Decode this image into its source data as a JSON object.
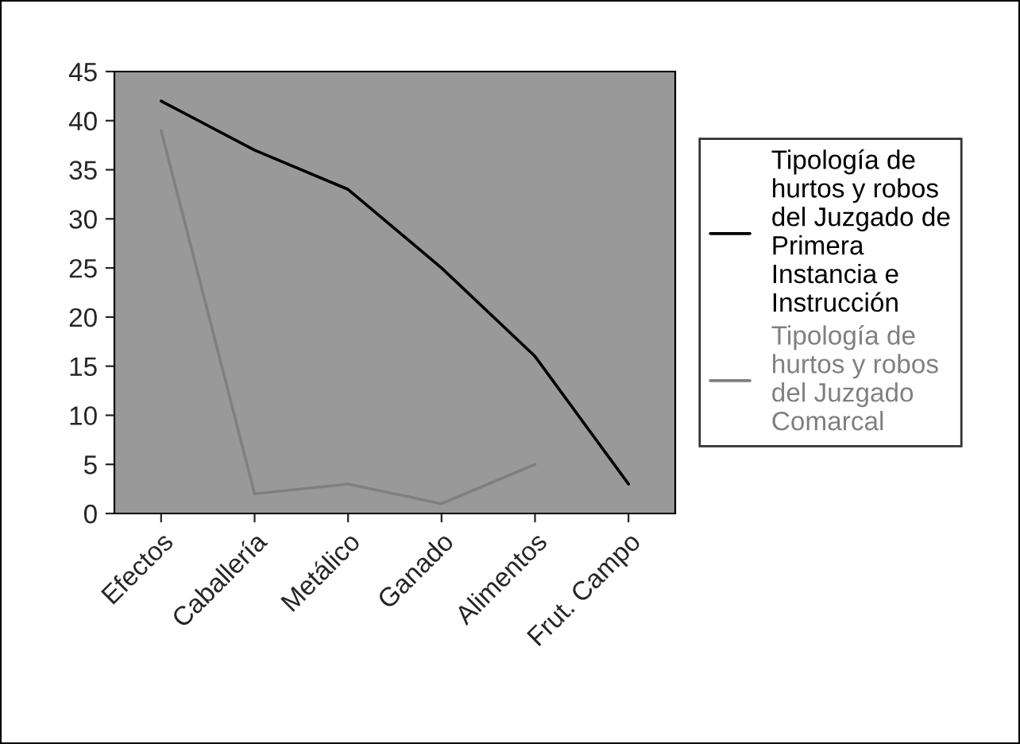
{
  "chart_data": {
    "type": "line",
    "categories": [
      "Efectos",
      "Caballería",
      "Metálico",
      "Ganado",
      "Alimentos",
      "Frut. Campo"
    ],
    "series": [
      {
        "name": "Tipología de\nhurtos y robos\ndel Juzgado de\nPrimera\nInstancia e\nInstrucción",
        "color": "#000000",
        "values": [
          42,
          37,
          33,
          25,
          16,
          3
        ]
      },
      {
        "name": "Tipología de\nhurtos y robos\ndel Juzgado\nComarcal",
        "color": "#808080",
        "values": [
          39,
          2,
          3,
          1,
          5,
          null
        ]
      }
    ],
    "ylim": [
      0,
      45
    ],
    "yticks": [
      0,
      5,
      10,
      15,
      20,
      25,
      30,
      35,
      40,
      45
    ],
    "grid": false,
    "legend": "right",
    "marker": "none",
    "line_style": "solid"
  }
}
